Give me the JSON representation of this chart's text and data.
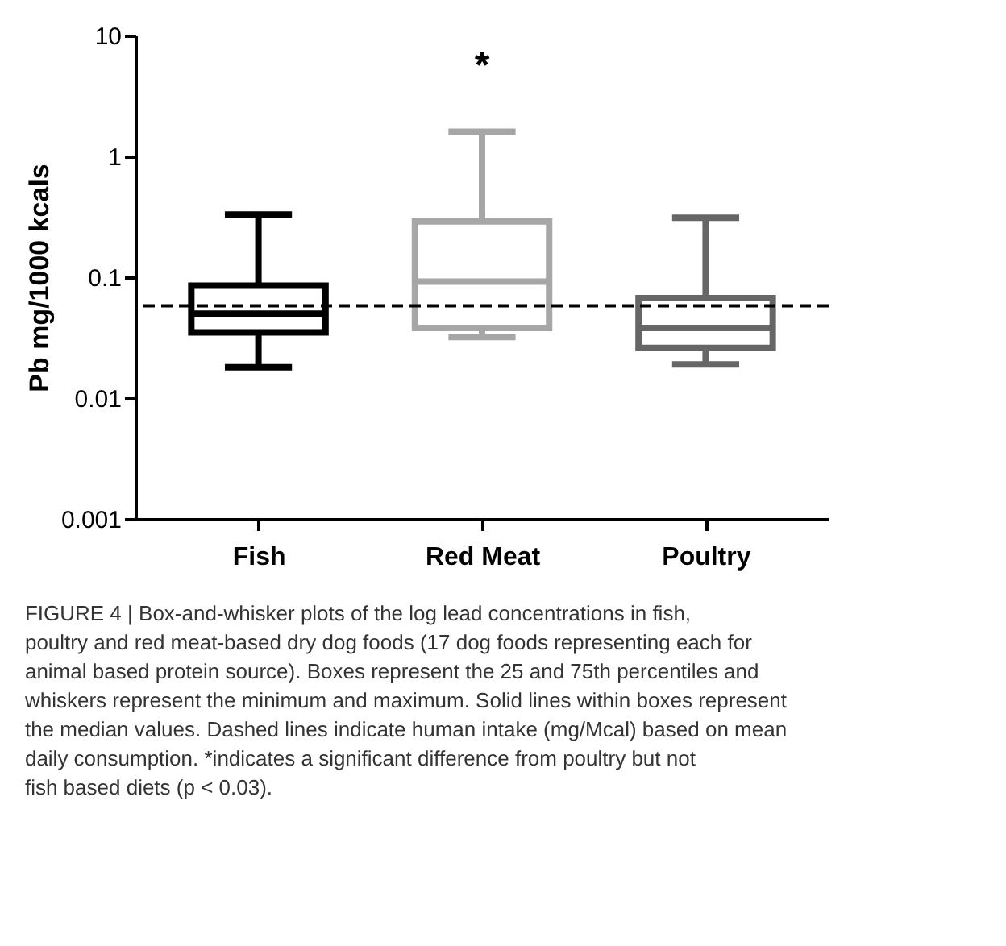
{
  "chart_data": {
    "type": "box",
    "ylabel": "Pb mg/1000 kcals",
    "categories": [
      "Fish",
      "Red Meat",
      "Poultry"
    ],
    "colors": [
      "#000000",
      "#a6a6a6",
      "#666666"
    ],
    "boxes": [
      {
        "low": 0.018,
        "q1": 0.035,
        "median": 0.05,
        "q3": 0.085,
        "high": 0.33
      },
      {
        "low": 0.032,
        "q1": 0.038,
        "median": 0.092,
        "q3": 0.29,
        "high": 1.6
      },
      {
        "low": 0.019,
        "q1": 0.026,
        "median": 0.038,
        "q3": 0.067,
        "high": 0.31
      }
    ],
    "log": true,
    "ylim": [
      0.001,
      10
    ],
    "yticks": [
      0.001,
      0.01,
      0.1,
      1,
      10
    ],
    "grid": false,
    "legend": false,
    "ref_lines": [
      {
        "axis": "y",
        "value": 0.058,
        "color": "#000000",
        "line_style": "dashed"
      }
    ],
    "annotations": [
      "*",
      "FIGURE 4 | Box-and-whisker plots of the log lead concentrations in fish, poultry and red meat-based dry dog foods (17 dog foods representing each for animal based protein source). Boxes represent the 25 and 75th percentiles and whiskers represent the minimum and maximum. Solid lines within boxes represent the median values. Dashed lines indicate human intake (mg/Mcal) based on mean daily consumption. *indicates a significant difference from poultry but not fish based diets (p < 0.03)."
    ]
  }
}
